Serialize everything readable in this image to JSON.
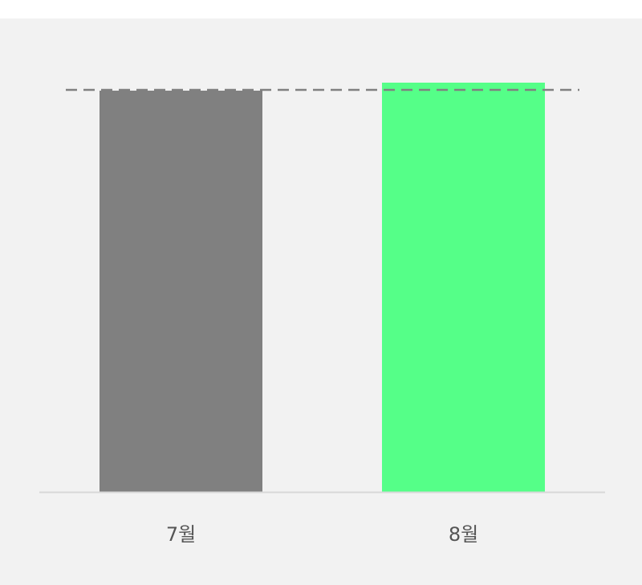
{
  "chart_data": {
    "type": "bar",
    "categories": [
      "7월",
      "8월"
    ],
    "values": [
      100,
      102
    ],
    "colors": [
      "#808080",
      "#55ff88"
    ],
    "reference_line": {
      "value": 100,
      "style": "dashed",
      "color": "#808080"
    },
    "ylim": [
      0,
      102
    ],
    "grid": false,
    "title": "",
    "xlabel": "",
    "ylabel": ""
  }
}
